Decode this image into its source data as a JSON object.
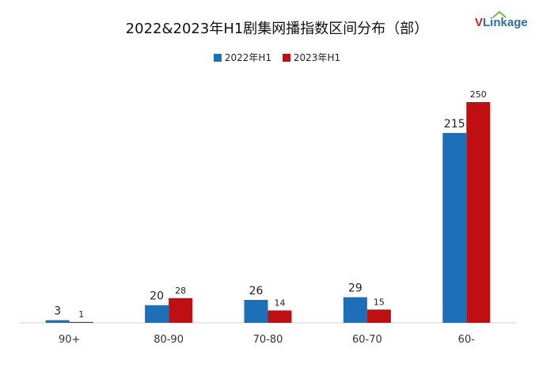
{
  "header": {
    "title": "2022&2023年H1剧集网播指数区间分布（部）",
    "logo_text_v": "V",
    "logo_text_rest": "Linkage"
  },
  "colors": {
    "series_2022": "#1d6fb8",
    "series_2023": "#c00f13",
    "axis": "#d0d0d0"
  },
  "chart_data": {
    "type": "bar",
    "title": "2022&2023年H1剧集网播指数区间分布（部）",
    "categories": [
      "90+",
      "80-90",
      "70-80",
      "60-70",
      "60-"
    ],
    "series": [
      {
        "name": "2022年H1",
        "values": [
          3,
          20,
          26,
          29,
          215
        ]
      },
      {
        "name": "2023年H1",
        "values": [
          1,
          28,
          14,
          15,
          250
        ]
      }
    ],
    "ylim": [
      0,
      260
    ],
    "grid": false,
    "legend": "top-center",
    "data_labels": true
  }
}
